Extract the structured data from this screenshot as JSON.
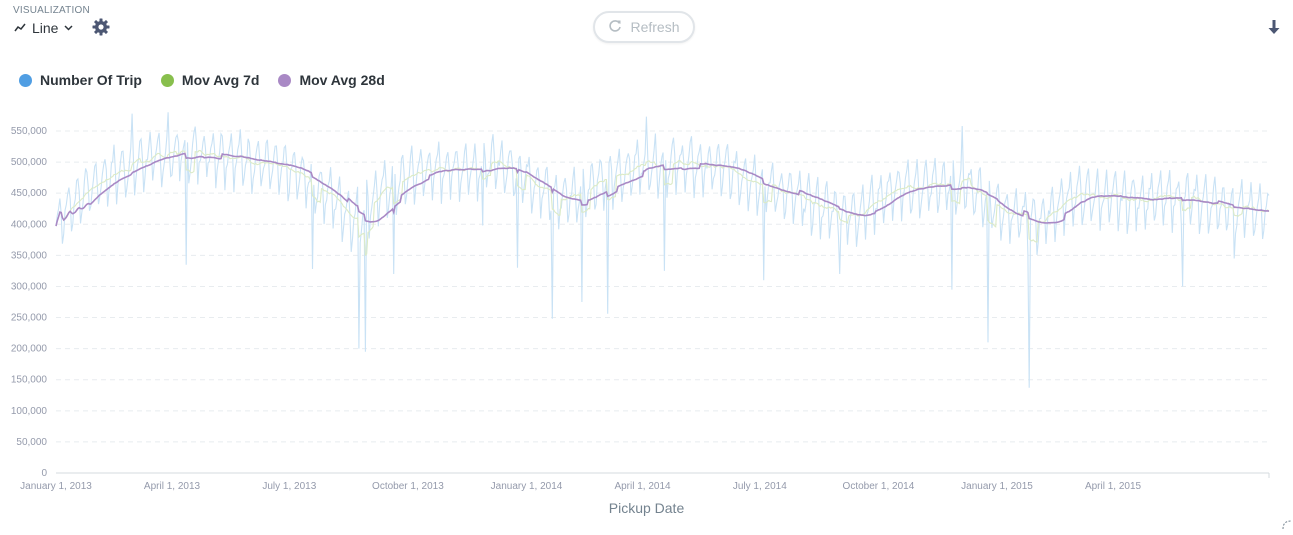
{
  "header": {
    "section_label": "VISUALIZATION",
    "viz_type": "Line",
    "refresh_label": "Refresh",
    "icons": {
      "viz_type": "line-chart-icon",
      "dropdown": "chevron-down-icon",
      "settings": "gear-icon",
      "refresh": "refresh-icon",
      "download": "download-icon"
    }
  },
  "legend": [
    {
      "label": "Number Of Trip",
      "color": "#509ee3"
    },
    {
      "label": "Mov Avg 7d",
      "color": "#88bf4d"
    },
    {
      "label": "Mov Avg 28d",
      "color": "#a989c5"
    }
  ],
  "chart_data": {
    "type": "line",
    "xlabel": "Pickup Date",
    "ylabel": "",
    "xlim": [
      "2013-01-01",
      "2015-07-31"
    ],
    "ylim": [
      0,
      550000
    ],
    "grid": true,
    "legend_position": "top-left",
    "x_ticks": [
      "January 1, 2013",
      "April 1, 2013",
      "July 1, 2013",
      "October 1, 2013",
      "January 1, 2014",
      "April 1, 2014",
      "July 1, 2014",
      "October 1, 2014",
      "January 1, 2015",
      "April 1, 2015"
    ],
    "x_tick_dates": [
      "2013-01-01",
      "2013-04-01",
      "2013-07-01",
      "2013-10-01",
      "2014-01-01",
      "2014-04-01",
      "2014-07-01",
      "2014-10-01",
      "2015-01-01",
      "2015-04-01"
    ],
    "y_ticks": [
      "0",
      "50,000",
      "100,000",
      "150,000",
      "200,000",
      "250,000",
      "300,000",
      "350,000",
      "400,000",
      "450,000",
      "500,000",
      "550,000"
    ],
    "y_tick_values": [
      0,
      50000,
      100000,
      150000,
      200000,
      250000,
      300000,
      350000,
      400000,
      450000,
      500000,
      550000
    ],
    "series": [
      {
        "name": "Number Of Trip",
        "color": "#c9e2f5",
        "baseline": [
          [
            "2013-01-01",
            395000
          ],
          [
            "2013-01-20",
            440000
          ],
          [
            "2013-02-10",
            470000
          ],
          [
            "2013-03-10",
            495000
          ],
          [
            "2013-04-10",
            510000
          ],
          [
            "2013-05-10",
            505000
          ],
          [
            "2013-06-10",
            490000
          ],
          [
            "2013-07-10",
            470000
          ],
          [
            "2013-08-01",
            440000
          ],
          [
            "2013-08-20",
            400000
          ],
          [
            "2013-09-10",
            445000
          ],
          [
            "2013-10-10",
            478000
          ],
          [
            "2013-11-10",
            482000
          ],
          [
            "2013-12-10",
            490000
          ],
          [
            "2014-01-01",
            470000
          ],
          [
            "2014-01-25",
            430000
          ],
          [
            "2014-02-25",
            458000
          ],
          [
            "2014-04-01",
            490000
          ],
          [
            "2014-05-01",
            490000
          ],
          [
            "2014-06-01",
            482000
          ],
          [
            "2014-07-01",
            460000
          ],
          [
            "2014-08-10",
            425000
          ],
          [
            "2014-09-10",
            405000
          ],
          [
            "2014-10-10",
            445000
          ],
          [
            "2014-11-10",
            455000
          ],
          [
            "2014-12-10",
            455000
          ],
          [
            "2015-01-01",
            420000
          ],
          [
            "2015-02-01",
            395000
          ],
          [
            "2015-03-01",
            440000
          ],
          [
            "2015-04-10",
            432000
          ],
          [
            "2015-05-20",
            435000
          ],
          [
            "2015-07-31",
            410000
          ]
        ],
        "amplitude": 45000,
        "dips": [
          [
            "2013-04-12",
            335000
          ],
          [
            "2013-07-19",
            328000
          ],
          [
            "2013-08-24",
            200000
          ],
          [
            "2013-08-29",
            195000
          ],
          [
            "2013-09-20",
            320000
          ],
          [
            "2013-11-28",
            398000
          ],
          [
            "2013-12-25",
            330000
          ],
          [
            "2014-01-21",
            248000
          ],
          [
            "2014-02-13",
            275000
          ],
          [
            "2014-03-05",
            256000
          ],
          [
            "2014-04-18",
            325000
          ],
          [
            "2014-07-04",
            310000
          ],
          [
            "2014-09-01",
            320000
          ],
          [
            "2014-11-27",
            295000
          ],
          [
            "2014-12-25",
            210000
          ],
          [
            "2015-01-26",
            137000
          ],
          [
            "2015-05-25",
            300000
          ],
          [
            "2015-07-04",
            345000
          ]
        ],
        "peaks": [
          [
            "2013-03-01",
            578000
          ],
          [
            "2013-03-29",
            580000
          ],
          [
            "2014-04-04",
            573000
          ],
          [
            "2014-12-05",
            558000
          ]
        ]
      },
      {
        "name": "Mov Avg 7d",
        "color": "#dcebc7",
        "window_days": 7
      },
      {
        "name": "Mov Avg 28d",
        "color": "#a989c5",
        "window_days": 28
      }
    ]
  }
}
